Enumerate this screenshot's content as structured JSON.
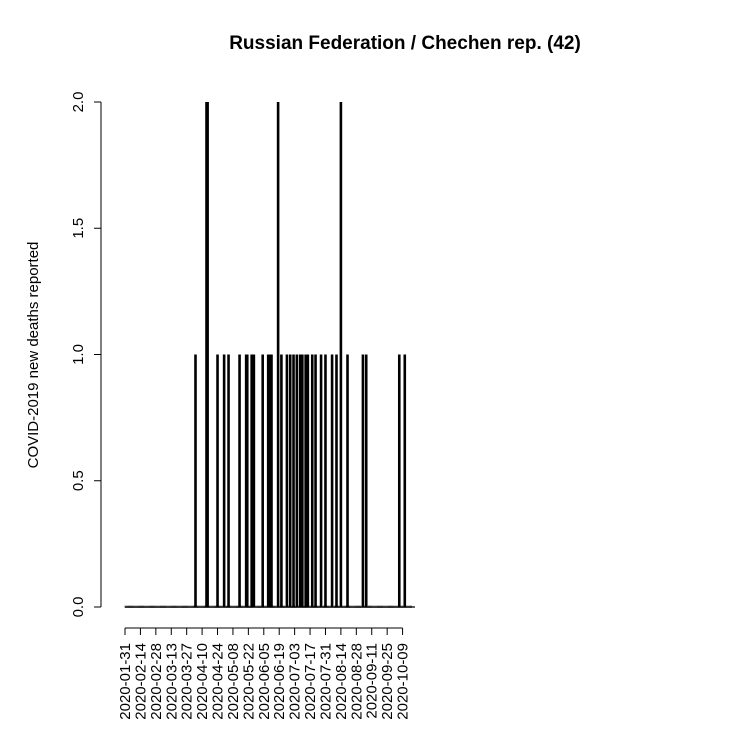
{
  "chart_data": {
    "type": "bar",
    "title": "Russian Federation / Chechen rep. (42)",
    "xlabel": "",
    "ylabel": "COVID-2019 new deaths reported",
    "ylim": [
      0,
      2
    ],
    "yticks": [
      "0.0",
      "0.5",
      "1.0",
      "1.5",
      "2.0"
    ],
    "xlim": [
      "2020-01-31",
      "2020-10-13"
    ],
    "xticks": [
      "2020-01-31",
      "2020-02-14",
      "2020-02-28",
      "2020-03-13",
      "2020-03-27",
      "2020-04-10",
      "2020-04-24",
      "2020-05-08",
      "2020-05-22",
      "2020-06-05",
      "2020-06-19",
      "2020-07-03",
      "2020-07-17",
      "2020-07-31",
      "2020-08-14",
      "2020-08-28",
      "2020-09-11",
      "2020-09-25",
      "2020-10-09"
    ],
    "series": [
      {
        "points": [
          {
            "date": "2020-04-04",
            "value": 1
          },
          {
            "date": "2020-04-14",
            "value": 2
          },
          {
            "date": "2020-04-15",
            "value": 2
          },
          {
            "date": "2020-04-24",
            "value": 1
          },
          {
            "date": "2020-04-30",
            "value": 1
          },
          {
            "date": "2020-05-04",
            "value": 1
          },
          {
            "date": "2020-05-14",
            "value": 1
          },
          {
            "date": "2020-05-20",
            "value": 1
          },
          {
            "date": "2020-05-21",
            "value": 1
          },
          {
            "date": "2020-05-25",
            "value": 1
          },
          {
            "date": "2020-05-27",
            "value": 1
          },
          {
            "date": "2020-06-04",
            "value": 1
          },
          {
            "date": "2020-06-09",
            "value": 1
          },
          {
            "date": "2020-06-10",
            "value": 1
          },
          {
            "date": "2020-06-12",
            "value": 1
          },
          {
            "date": "2020-06-18",
            "value": 2
          },
          {
            "date": "2020-06-21",
            "value": 1
          },
          {
            "date": "2020-06-26",
            "value": 1
          },
          {
            "date": "2020-06-29",
            "value": 1
          },
          {
            "date": "2020-07-02",
            "value": 1
          },
          {
            "date": "2020-07-05",
            "value": 1
          },
          {
            "date": "2020-07-08",
            "value": 1
          },
          {
            "date": "2020-07-10",
            "value": 1
          },
          {
            "date": "2020-07-13",
            "value": 1
          },
          {
            "date": "2020-07-15",
            "value": 1
          },
          {
            "date": "2020-07-19",
            "value": 1
          },
          {
            "date": "2020-07-22",
            "value": 1
          },
          {
            "date": "2020-07-27",
            "value": 1
          },
          {
            "date": "2020-07-31",
            "value": 1
          },
          {
            "date": "2020-08-06",
            "value": 1
          },
          {
            "date": "2020-08-10",
            "value": 1
          },
          {
            "date": "2020-08-14",
            "value": 2
          },
          {
            "date": "2020-08-20",
            "value": 1
          },
          {
            "date": "2020-09-03",
            "value": 1
          },
          {
            "date": "2020-09-06",
            "value": 1
          },
          {
            "date": "2020-10-06",
            "value": 1
          },
          {
            "date": "2020-10-11",
            "value": 1
          }
        ]
      }
    ],
    "grid": false,
    "legend": "none"
  }
}
